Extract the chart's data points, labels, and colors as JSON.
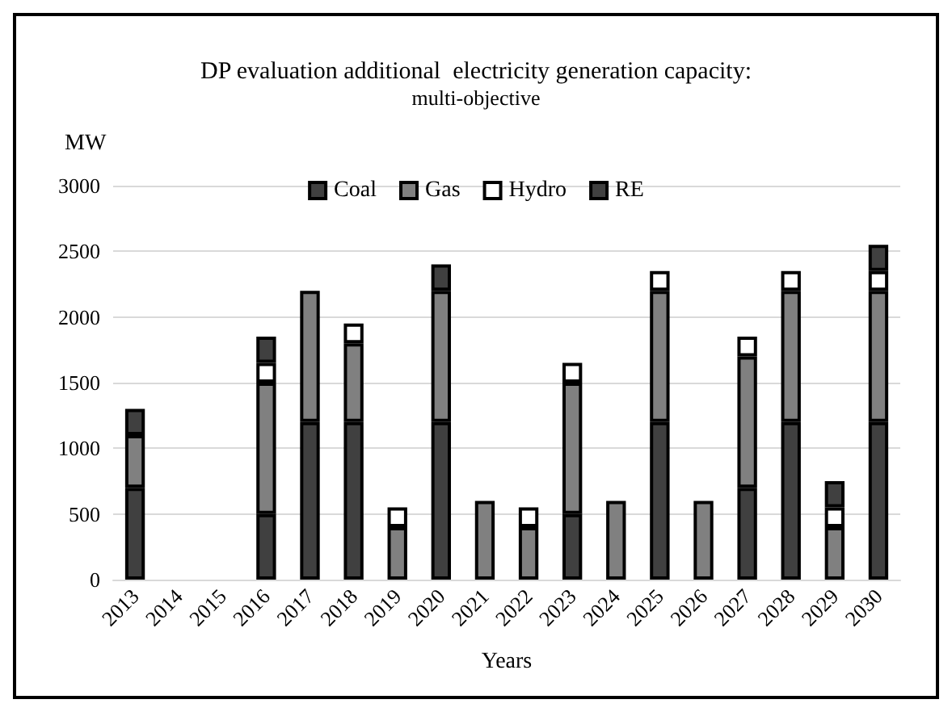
{
  "chart_data": {
    "type": "bar",
    "stacked": true,
    "title": "DP evaluation additional  electricity generation capacity:",
    "subtitle": "multi-objective",
    "ylabel": "MW",
    "xlabel": "Years",
    "categories": [
      "2013",
      "2014",
      "2015",
      "2016",
      "2017",
      "2018",
      "2019",
      "2020",
      "2021",
      "2022",
      "2023",
      "2024",
      "2025",
      "2026",
      "2027",
      "2028",
      "2029",
      "2030"
    ],
    "series": [
      {
        "name": "Coal",
        "color": "#404040",
        "values": [
          700,
          null,
          null,
          500,
          1200,
          1200,
          null,
          1200,
          null,
          null,
          500,
          null,
          1200,
          null,
          700,
          1200,
          null,
          1200
        ]
      },
      {
        "name": "Gas",
        "color": "#808080",
        "values": [
          400,
          null,
          null,
          1000,
          1000,
          600,
          400,
          1000,
          600,
          400,
          1000,
          600,
          1000,
          600,
          1000,
          1000,
          400,
          1000
        ]
      },
      {
        "name": "Hydro",
        "color": "#ffffff",
        "values": [
          null,
          null,
          null,
          150,
          null,
          150,
          150,
          null,
          null,
          150,
          150,
          null,
          150,
          null,
          150,
          150,
          150,
          150
        ]
      },
      {
        "name": "RE",
        "color": "#404040",
        "values": [
          200,
          null,
          null,
          200,
          null,
          null,
          null,
          200,
          null,
          null,
          null,
          null,
          null,
          null,
          null,
          null,
          200,
          200
        ]
      }
    ],
    "ylim": [
      0,
      3000
    ],
    "yticks": [
      0,
      500,
      1000,
      1500,
      2000,
      2500,
      3000
    ],
    "grid": "y",
    "legend": "top"
  }
}
